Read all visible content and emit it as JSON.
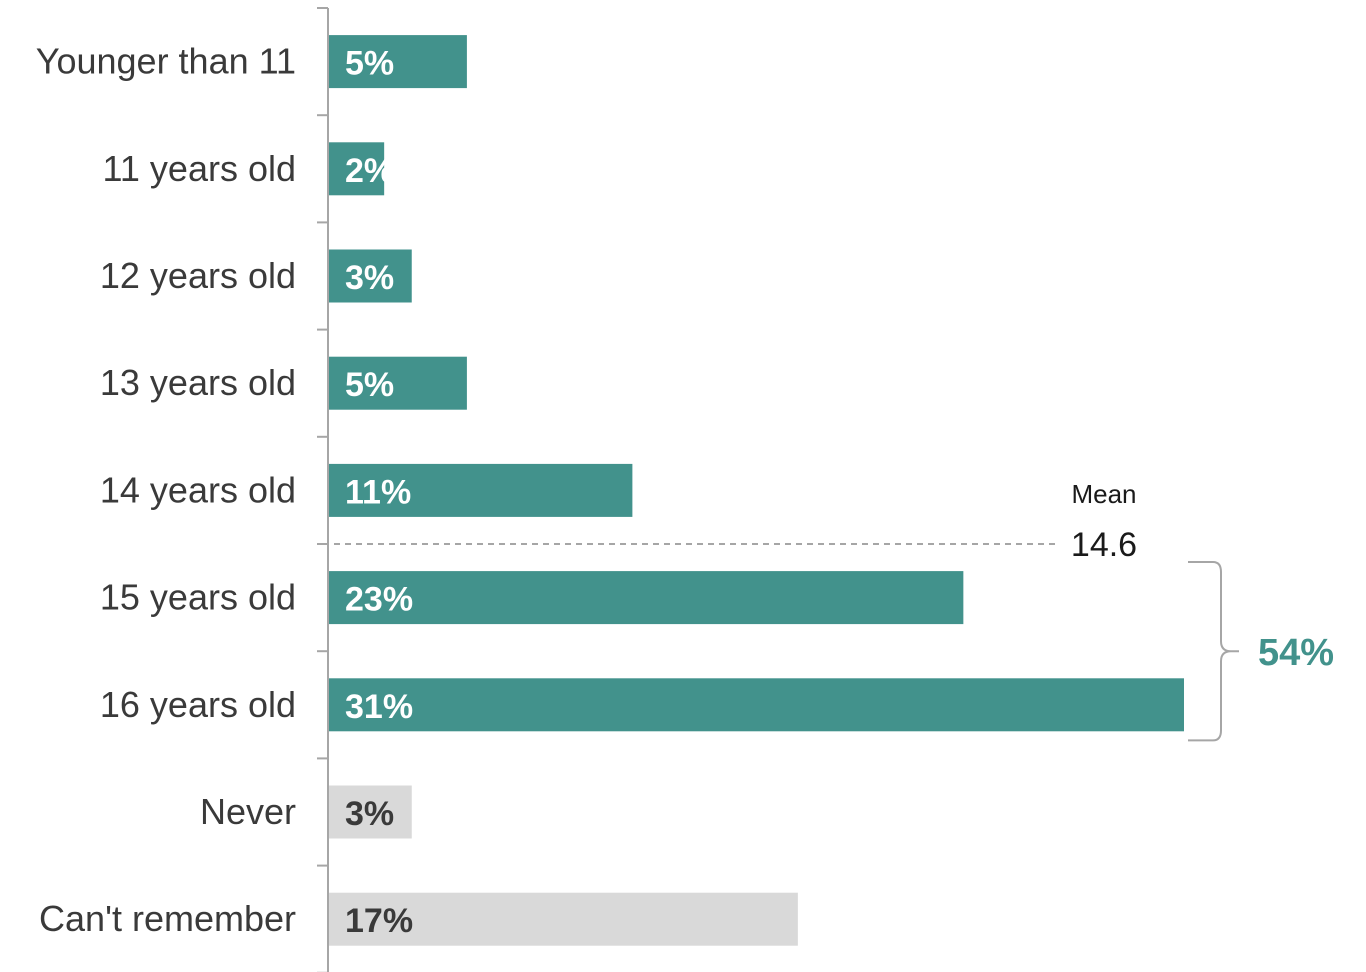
{
  "chart_data": {
    "type": "bar",
    "orientation": "horizontal",
    "categories": [
      "Younger than 11",
      "11 years old",
      "12 years old",
      "13 years old",
      "14 years old",
      "15 years old",
      "16 years old",
      "Never",
      "Can't remember"
    ],
    "values": [
      5,
      2,
      3,
      5,
      11,
      23,
      31,
      3,
      17
    ],
    "value_labels": [
      "5%",
      "2%",
      "3%",
      "5%",
      "11%",
      "23%",
      "31%",
      "3%",
      "17%"
    ],
    "bar_colors": [
      "#42928c",
      "#42928c",
      "#42928c",
      "#42928c",
      "#42928c",
      "#42928c",
      "#42928c",
      "#d9d9d9",
      "#d9d9d9"
    ],
    "label_colors": [
      "#ffffff",
      "#ffffff",
      "#ffffff",
      "#ffffff",
      "#ffffff",
      "#ffffff",
      "#ffffff",
      "#3a3a3a",
      "#3a3a3a"
    ],
    "xlim": [
      0,
      31
    ],
    "grid": false,
    "mean": {
      "title": "Mean",
      "value": "14.6",
      "age": 14.6
    },
    "bracket": {
      "label": "54%",
      "from_category": "15 years old",
      "to_category": "16 years old",
      "color": "#42928c"
    }
  }
}
